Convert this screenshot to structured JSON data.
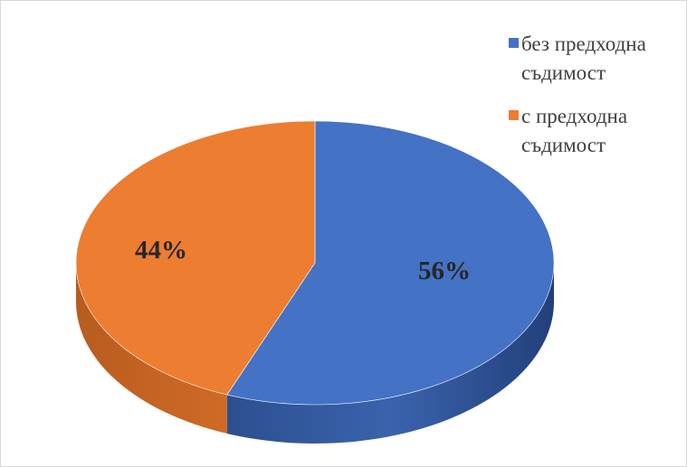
{
  "chart_data": {
    "type": "pie",
    "title": "",
    "slices": [
      {
        "name": "без предходна съдимост",
        "name_lines": [
          "без предходна",
          "съдимост"
        ],
        "value": 56,
        "label": "56%",
        "color": "#4472C4"
      },
      {
        "name": "с предходна съдимост",
        "name_lines": [
          "с предходна",
          "съдимост"
        ],
        "value": 44,
        "label": "44%",
        "color": "#ED7D31"
      }
    ],
    "legend_position": "top-right",
    "style": "3d"
  }
}
